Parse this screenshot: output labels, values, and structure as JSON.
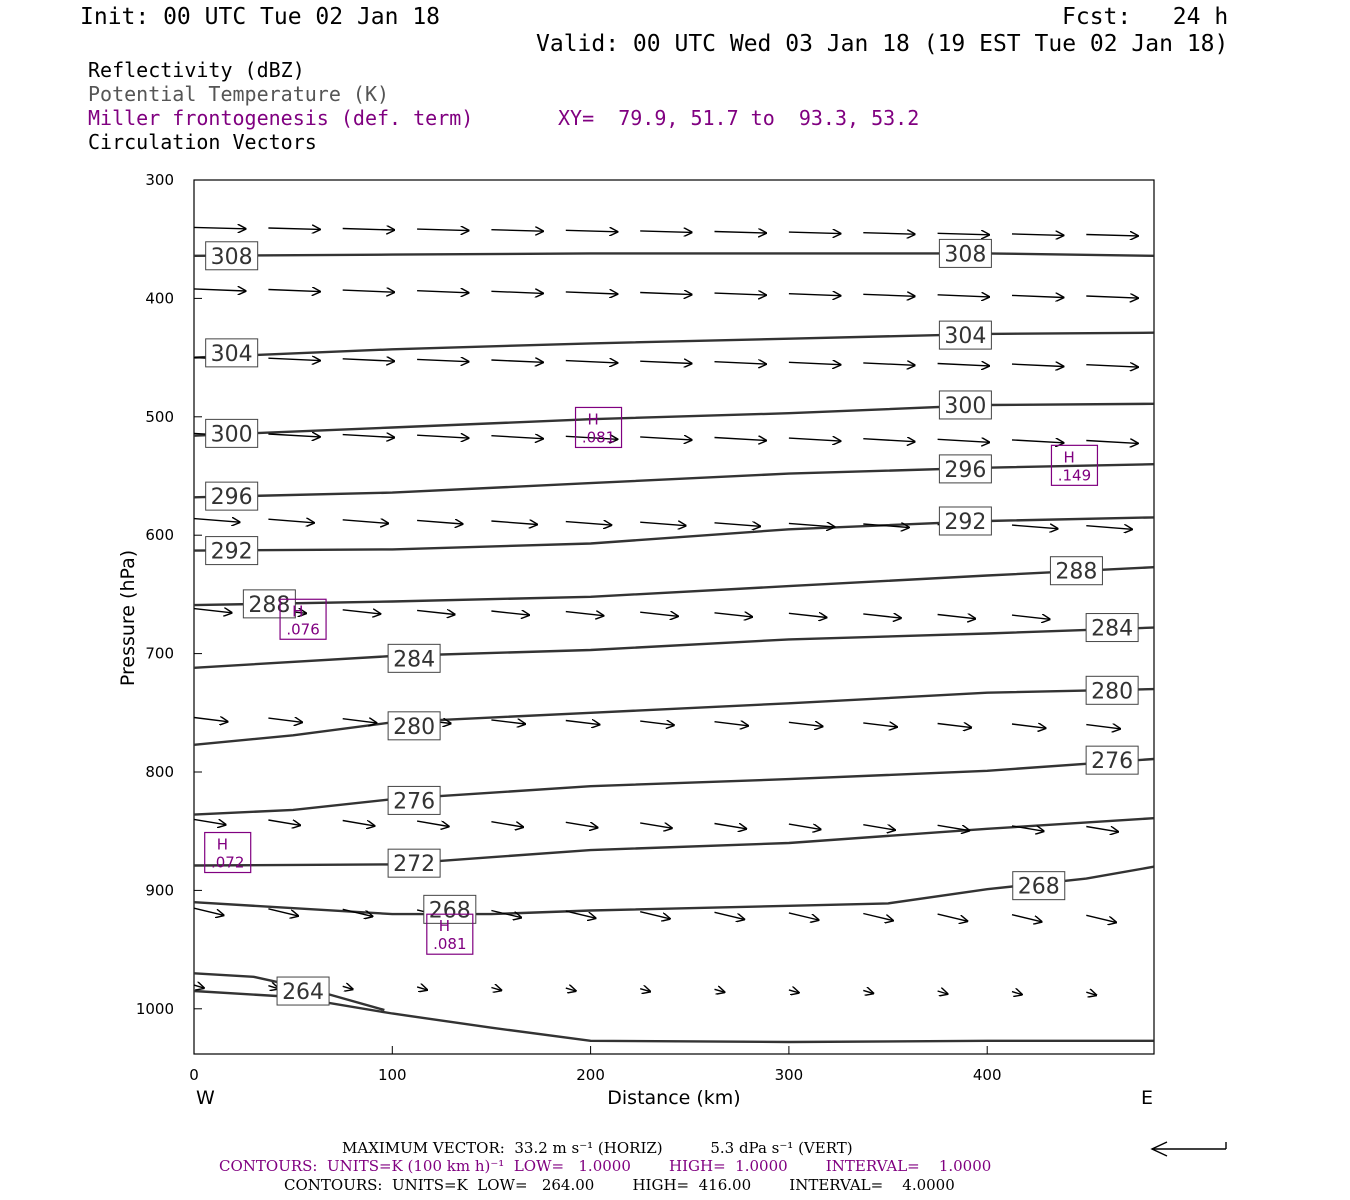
{
  "header": {
    "init": "Init: 00 UTC Tue 02 Jan 18",
    "fcst": "Fcst:   24 h",
    "valid": "Valid: 00 UTC Wed 03 Jan 18 (19 EST Tue 02 Jan 18)"
  },
  "legend": {
    "reflectivity": "Reflectivity (dBZ)",
    "theta": "Potential Temperature (K)",
    "miller": "Miller frontogenesis (def. term)",
    "xy": "XY=  79.9, 51.7 to  93.3, 53.2",
    "vectors": "Circulation Vectors"
  },
  "footer": {
    "max_vector": "MAXIMUM VECTOR:  33.2 m s⁻¹ (HORIZ)          5.3 dPa s⁻¹ (VERT)",
    "contours_purple": "CONTOURS:  UNITS=K (100 km h)⁻¹  LOW=   1.0000        HIGH=  1.0000        INTERVAL=    1.0000",
    "contours_black": "CONTOURS:  UNITS=K  LOW=   264.00        HIGH=  416.00        INTERVAL=    4.0000"
  },
  "colors": {
    "contour": "#333333",
    "frontogenesis": "#800080",
    "vector": "#000000"
  },
  "chart_data": {
    "type": "line",
    "xlabel": "Distance (km)",
    "ylabel": "Pressure (hPa)",
    "xlim": [
      0,
      484
    ],
    "ylim": [
      1030,
      300
    ],
    "x_ticks": [
      0,
      100,
      200,
      300,
      400
    ],
    "y_ticks": [
      300,
      400,
      500,
      600,
      700,
      800,
      900,
      1000
    ],
    "x_end_labels": {
      "left": "W",
      "right": "E"
    },
    "isentropes": [
      {
        "theta": 308,
        "x": [
          0,
          100,
          200,
          300,
          400,
          484
        ],
        "p": [
          364,
          363,
          362,
          362,
          362,
          364
        ],
        "labels": [
          [
            19,
            364
          ],
          [
            389,
            362
          ]
        ]
      },
      {
        "theta": 304,
        "x": [
          0,
          100,
          200,
          300,
          400,
          484
        ],
        "p": [
          450,
          443,
          438,
          434,
          430,
          429
        ],
        "labels": [
          [
            19,
            446
          ],
          [
            389,
            431
          ]
        ]
      },
      {
        "theta": 300,
        "x": [
          0,
          100,
          200,
          300,
          400,
          484
        ],
        "p": [
          516,
          509,
          502,
          497,
          490,
          489
        ],
        "labels": [
          [
            19,
            514
          ],
          [
            389,
            490
          ]
        ]
      },
      {
        "theta": 296,
        "x": [
          0,
          100,
          200,
          300,
          400,
          484
        ],
        "p": [
          568,
          564,
          556,
          548,
          543,
          540
        ],
        "labels": [
          [
            19,
            567
          ],
          [
            389,
            544
          ]
        ]
      },
      {
        "theta": 292,
        "x": [
          0,
          100,
          200,
          300,
          400,
          484
        ],
        "p": [
          613,
          612,
          607,
          595,
          588,
          585
        ],
        "labels": [
          [
            19,
            613
          ],
          [
            389,
            588
          ]
        ]
      },
      {
        "theta": 288,
        "x": [
          0,
          100,
          200,
          300,
          400,
          484
        ],
        "p": [
          659,
          656,
          652,
          643,
          634,
          627
        ],
        "labels": [
          [
            38,
            658
          ],
          [
            445,
            630
          ]
        ]
      },
      {
        "theta": 284,
        "x": [
          0,
          100,
          200,
          300,
          400,
          484
        ],
        "p": [
          712,
          702,
          697,
          688,
          683,
          678
        ],
        "labels": [
          [
            111,
            704
          ],
          [
            463,
            678
          ]
        ]
      },
      {
        "theta": 280,
        "x": [
          0,
          50,
          100,
          200,
          300,
          400,
          484
        ],
        "p": [
          777,
          769,
          758,
          750,
          742,
          733,
          730
        ],
        "labels": [
          [
            111,
            761
          ],
          [
            463,
            731
          ]
        ]
      },
      {
        "theta": 276,
        "x": [
          0,
          50,
          100,
          200,
          300,
          400,
          484
        ],
        "p": [
          836,
          832,
          823,
          812,
          806,
          799,
          789
        ],
        "labels": [
          [
            111,
            824
          ],
          [
            463,
            790
          ]
        ]
      },
      {
        "theta": 272,
        "x": [
          0,
          100,
          150,
          200,
          300,
          400,
          484
        ],
        "p": [
          879,
          878,
          872,
          866,
          860,
          848,
          839
        ],
        "labels": [
          [
            111,
            877
          ]
        ]
      },
      {
        "theta": 268,
        "x": [
          0,
          100,
          150,
          200,
          300,
          350,
          400,
          450,
          484
        ],
        "p": [
          910,
          920,
          920,
          917,
          913,
          911,
          899,
          890,
          880
        ],
        "labels": [
          [
            129,
            916
          ],
          [
            426,
            896
          ]
        ]
      },
      {
        "theta": 264,
        "x": [
          0,
          30,
          60,
          96
        ],
        "p": [
          970,
          973,
          984,
          1001
        ],
        "labels": [
          [
            55,
            985
          ]
        ]
      },
      {
        "theta": 264,
        "x": [
          0,
          50,
          100,
          150,
          200,
          300,
          400,
          484
        ],
        "p": [
          985,
          990,
          1004,
          1016,
          1027,
          1028,
          1027,
          1027
        ],
        "labels": []
      }
    ],
    "frontogenesis_maxima": [
      {
        "label": "H",
        "value": ".081",
        "x": 204,
        "p": 509
      },
      {
        "label": "H",
        "value": ".149",
        "x": 444,
        "p": 541
      },
      {
        "label": "H",
        "value": ".076",
        "x": 55,
        "p": 671
      },
      {
        "label": "H",
        "value": ".072",
        "x": 17,
        "p": 868
      },
      {
        "label": "H",
        "value": ".081",
        "x": 129,
        "p": 937
      }
    ],
    "vectors": {
      "max_horizontal": "33.2 m s-1",
      "max_vertical": "5.3 dPa s-1",
      "rows": [
        {
          "p": 340,
          "dx": 26,
          "dp": 2.5
        },
        {
          "p": 392,
          "dx": 26,
          "dp": 3.5
        },
        {
          "p": 450,
          "dx": 26,
          "dp": 4.0
        },
        {
          "p": 514,
          "dx": 26,
          "dp": 5.0
        },
        {
          "p": 586,
          "dx": 23,
          "dp": 6.0
        },
        {
          "p": 662,
          "dx": 19,
          "dp": 7.0
        },
        {
          "p": 754,
          "dx": 17,
          "dp": 7.0
        },
        {
          "p": 840,
          "dx": 16,
          "dp": 9.0
        },
        {
          "p": 915,
          "dx": 15,
          "dp": 12.0
        },
        {
          "p": 980,
          "dx": 5,
          "dp": 5.0
        }
      ]
    }
  }
}
